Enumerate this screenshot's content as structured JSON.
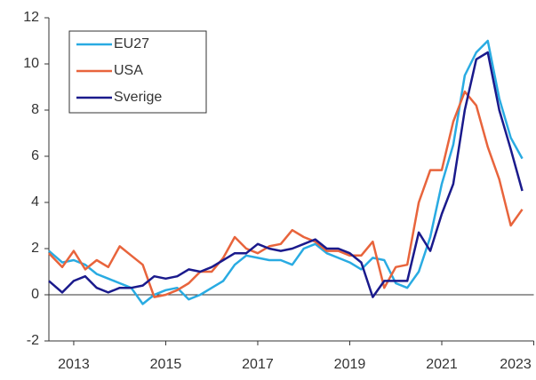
{
  "chart_data": {
    "type": "line",
    "x": [
      2012.46,
      2012.75,
      2013,
      2013.25,
      2013.5,
      2013.75,
      2014,
      2014.25,
      2014.5,
      2014.75,
      2015,
      2015.25,
      2015.5,
      2015.75,
      2016,
      2016.25,
      2016.5,
      2016.75,
      2017,
      2017.25,
      2017.5,
      2017.75,
      2018,
      2018.25,
      2018.5,
      2018.75,
      2019,
      2019.25,
      2019.5,
      2019.75,
      2020,
      2020.25,
      2020.5,
      2020.75,
      2021,
      2021.25,
      2021.5,
      2021.75,
      2022,
      2022.25,
      2022.5,
      2022.75
    ],
    "series": [
      {
        "name": "EU27",
        "color": "#29abe2",
        "values": [
          1.9,
          1.4,
          1.5,
          1.3,
          0.9,
          0.7,
          0.5,
          0.3,
          -0.4,
          0.0,
          0.2,
          0.3,
          -0.2,
          0.0,
          0.3,
          0.6,
          1.3,
          1.7,
          1.6,
          1.5,
          1.5,
          1.3,
          2.0,
          2.2,
          1.8,
          1.6,
          1.4,
          1.1,
          1.6,
          1.5,
          0.5,
          0.3,
          1.0,
          2.5,
          4.8,
          6.5,
          9.5,
          10.5,
          11.0,
          8.5,
          6.8,
          5.9
        ]
      },
      {
        "name": "USA",
        "color": "#e8643c",
        "values": [
          1.8,
          1.2,
          1.9,
          1.1,
          1.5,
          1.2,
          2.1,
          1.7,
          1.3,
          -0.1,
          0.0,
          0.2,
          0.5,
          1.0,
          1.0,
          1.6,
          2.5,
          2.0,
          1.8,
          2.1,
          2.2,
          2.8,
          2.5,
          2.3,
          1.9,
          1.9,
          1.7,
          1.7,
          2.3,
          0.3,
          1.2,
          1.3,
          4.0,
          5.4,
          5.4,
          7.5,
          8.8,
          8.2,
          6.4,
          5.0,
          3.0,
          3.7
        ]
      },
      {
        "name": "Sverige",
        "color": "#1a1a8c",
        "values": [
          0.6,
          0.1,
          0.6,
          0.8,
          0.3,
          0.1,
          0.3,
          0.3,
          0.4,
          0.8,
          0.7,
          0.8,
          1.1,
          1.0,
          1.2,
          1.5,
          1.8,
          1.8,
          2.2,
          2.0,
          1.9,
          2.0,
          2.2,
          2.4,
          2.0,
          2.0,
          1.8,
          1.4,
          -0.1,
          0.6,
          0.6,
          0.6,
          2.7,
          1.9,
          3.5,
          4.8,
          8.0,
          10.2,
          10.5,
          8.0,
          6.3,
          4.5
        ]
      }
    ],
    "xlim": [
      2012.46,
      2023.0
    ],
    "xticks": [
      2013,
      2015,
      2017,
      2019,
      2021,
      2023
    ],
    "ylim": [
      -2,
      12
    ],
    "yticks": [
      -2,
      0,
      2,
      4,
      6,
      8,
      10,
      12
    ],
    "legend": "upper left"
  }
}
